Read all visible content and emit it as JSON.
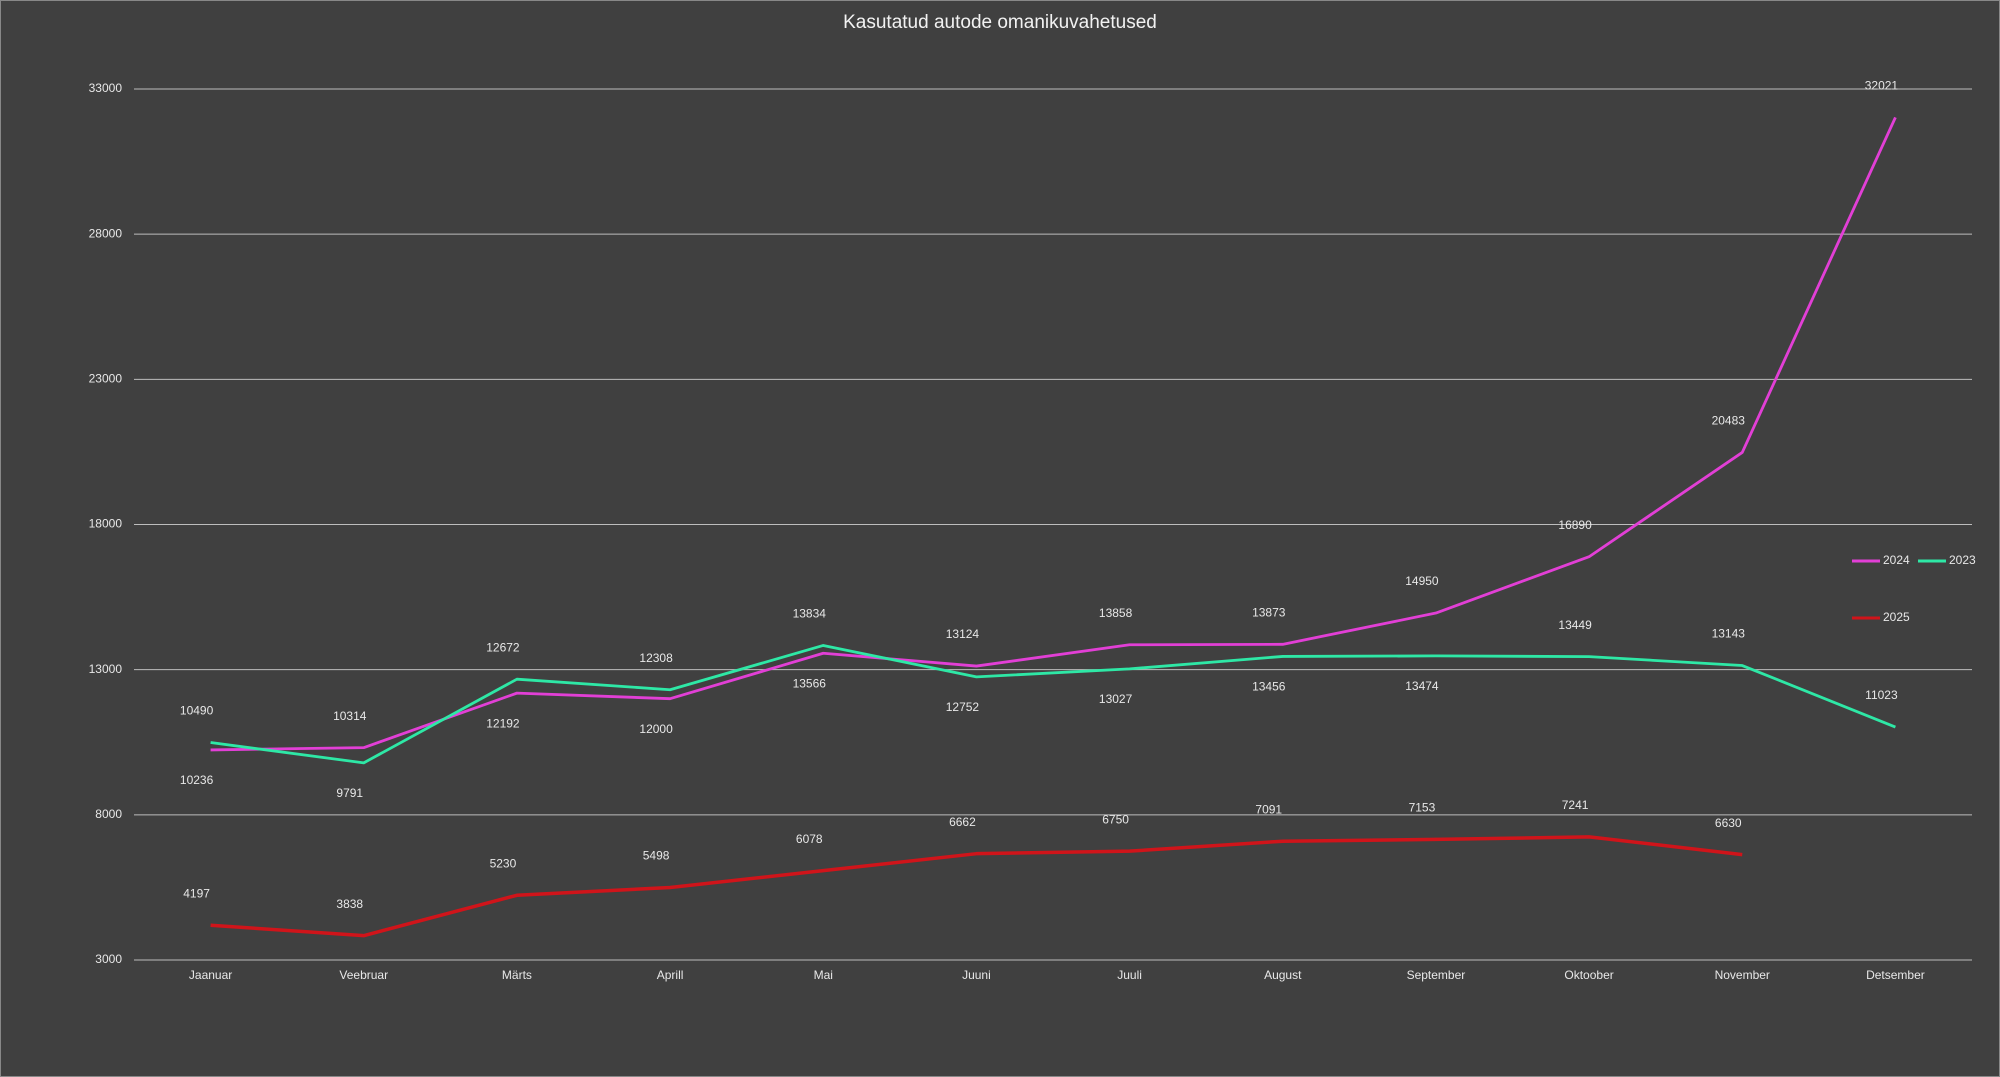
{
  "chart_data": {
    "type": "line",
    "title": "Kasutatud autode omanikuvahetused",
    "categories": [
      "Jaanuar",
      "Veebruar",
      "Märts",
      "Aprill",
      "Mai",
      "Juuni",
      "Juuli",
      "August",
      "September",
      "Oktoober",
      "November",
      "Detsember"
    ],
    "series": [
      {
        "name": "2024",
        "color": "#e23fd6",
        "values": [
          10236,
          10314,
          12192,
          12000,
          13566,
          13124,
          13858,
          13873,
          14950,
          16890,
          20483,
          32021
        ]
      },
      {
        "name": "2023",
        "color": "#2ee8a6",
        "values": [
          10490,
          9791,
          12672,
          12308,
          13834,
          12752,
          13027,
          13456,
          13474,
          13449,
          13143,
          11023
        ]
      },
      {
        "name": "2025",
        "color": "#d0141a",
        "values": [
          4197,
          3838,
          5230,
          5498,
          6078,
          6662,
          6750,
          7091,
          7153,
          7241,
          6630,
          null
        ]
      }
    ],
    "ylim": [
      3000,
      33000
    ],
    "yticks": [
      3000,
      8000,
      13000,
      18000,
      23000,
      28000,
      33000
    ],
    "grid": true,
    "legend": "right"
  }
}
